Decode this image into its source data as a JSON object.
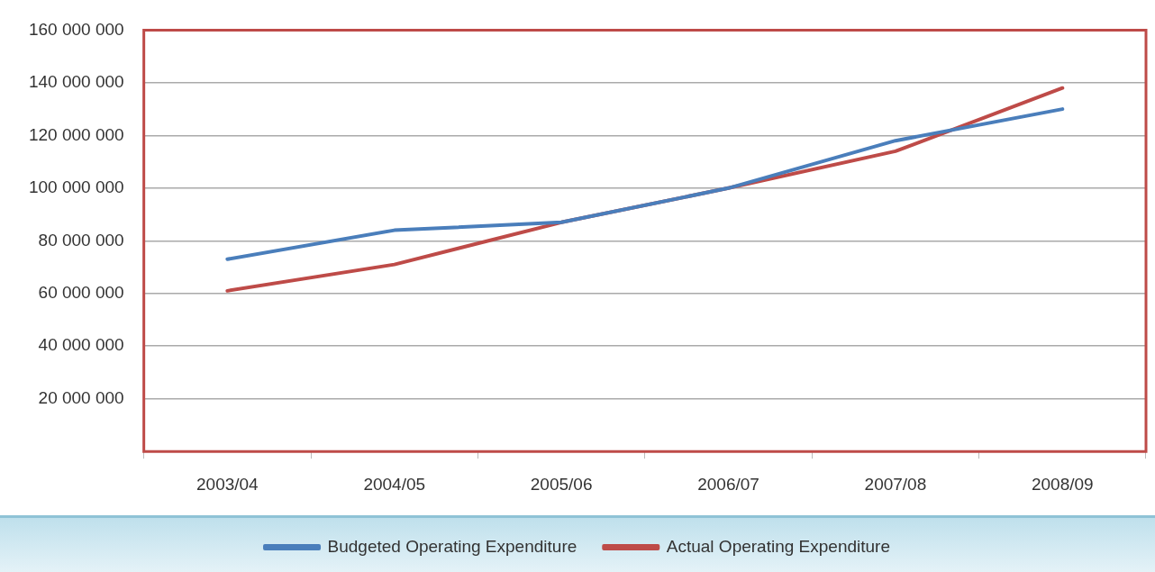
{
  "chart_data": {
    "type": "line",
    "categories": [
      "2003/04",
      "2004/05",
      "2005/06",
      "2006/07",
      "2007/08",
      "2008/09"
    ],
    "series": [
      {
        "name": "Budgeted Operating Expenditure",
        "color": "#4a7ebb",
        "values": [
          73000000,
          84000000,
          87000000,
          100000000,
          118000000,
          130000000
        ]
      },
      {
        "name": "Actual Operating Expenditure",
        "color": "#be4b48",
        "values": [
          61000000,
          71000000,
          87000000,
          100000000,
          114000000,
          138000000
        ]
      }
    ],
    "ylim": [
      0,
      160000000
    ],
    "yticks": [
      {
        "value": 0,
        "label": null
      },
      20000000,
      40000000,
      60000000,
      80000000,
      100000000,
      120000000,
      140000000,
      160000000
    ],
    "grid": "y",
    "legend": "bottom",
    "marker": "none",
    "line_style": "solid"
  }
}
